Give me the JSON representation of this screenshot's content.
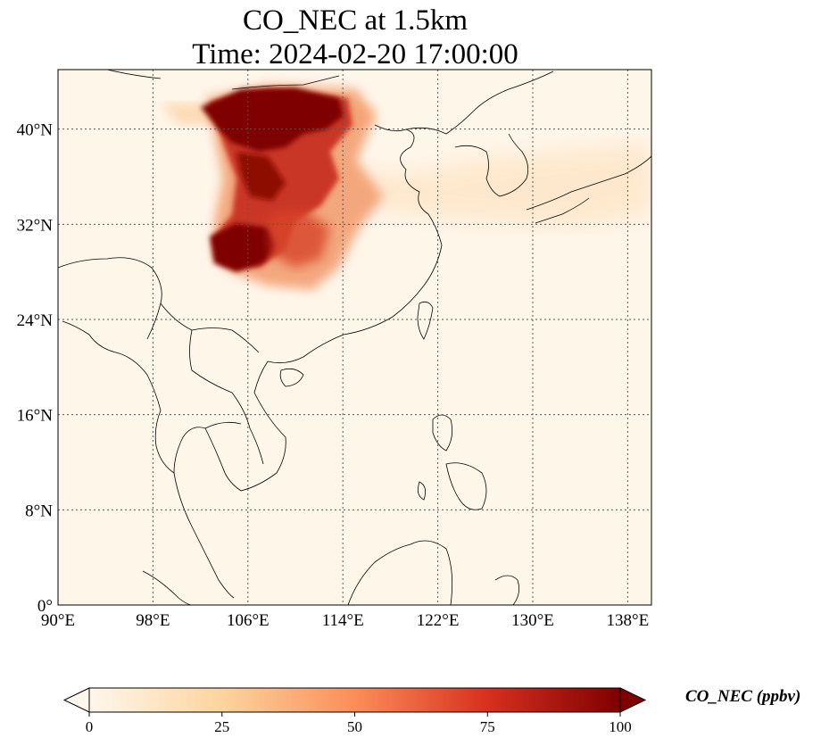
{
  "title": {
    "line1": "CO_NEC at 1.5km",
    "line2": "Time: 2024-02-20 17:00:00"
  },
  "map": {
    "extent": {
      "lon_min": 90,
      "lon_max": 140,
      "lat_min": 0,
      "lat_max": 45
    },
    "gridlines": "dotted",
    "lon_ticks": [
      {
        "value": 90,
        "label": "90°E"
      },
      {
        "value": 98,
        "label": "98°E"
      },
      {
        "value": 106,
        "label": "106°E"
      },
      {
        "value": 114,
        "label": "114°E"
      },
      {
        "value": 122,
        "label": "122°E"
      },
      {
        "value": 130,
        "label": "130°E"
      },
      {
        "value": 138,
        "label": "138°E"
      }
    ],
    "lat_ticks": [
      {
        "value": 0,
        "label": "0°"
      },
      {
        "value": 8,
        "label": "8°N"
      },
      {
        "value": 16,
        "label": "16°N"
      },
      {
        "value": 24,
        "label": "24°N"
      },
      {
        "value": 32,
        "label": "32°N"
      },
      {
        "value": 40,
        "label": "40°N"
      }
    ],
    "plumes": [
      {
        "name": "north-china-plume",
        "lon": 108.5,
        "lat": 40.5,
        "peak_ppbv": 100
      },
      {
        "name": "sichuan-plume",
        "lon": 105,
        "lat": 30,
        "peak_ppbv": 100
      }
    ]
  },
  "colorbar": {
    "label": "CO_NEC (ppbv)",
    "min": 0,
    "max": 100,
    "extend": "both",
    "colormap": "OrRd",
    "ticks": [
      {
        "value": 0,
        "label": "0"
      },
      {
        "value": 25,
        "label": "25"
      },
      {
        "value": 50,
        "label": "50"
      },
      {
        "value": 75,
        "label": "75"
      },
      {
        "value": 100,
        "label": "100"
      }
    ]
  }
}
